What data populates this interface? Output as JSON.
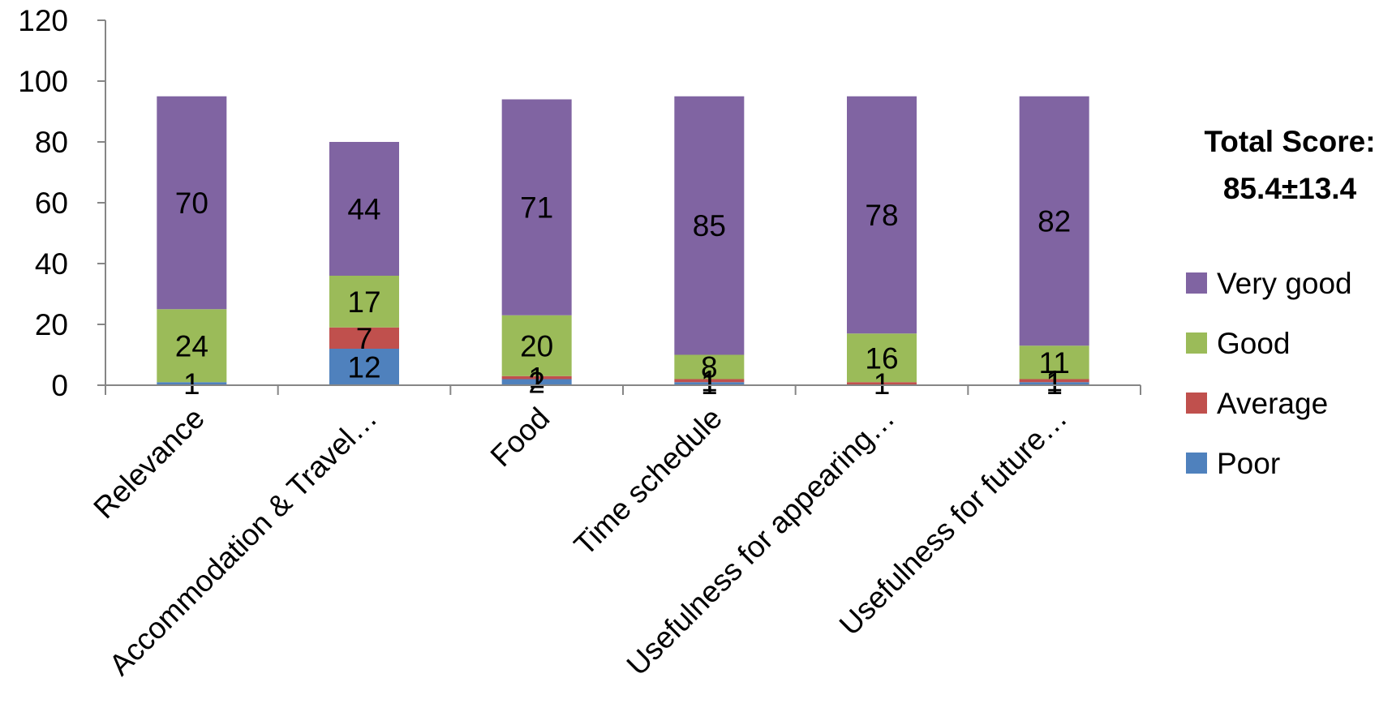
{
  "chart_data": {
    "type": "bar",
    "stacked": true,
    "categories": [
      "Relevance",
      "Accommodation & Travel…",
      "Food",
      "Time schedule",
      "Usefulness for appearing…",
      "Usefulness for future…"
    ],
    "series": [
      {
        "name": "Poor",
        "color": "#4F81BD",
        "values": [
          1,
          12,
          2,
          1,
          0,
          1
        ]
      },
      {
        "name": "Average",
        "color": "#C0504D",
        "values": [
          0,
          7,
          1,
          1,
          1,
          1
        ]
      },
      {
        "name": "Good",
        "color": "#9BBB59",
        "values": [
          24,
          17,
          20,
          8,
          16,
          11
        ]
      },
      {
        "name": "Very good",
        "color": "#8064A2",
        "values": [
          70,
          44,
          71,
          85,
          78,
          82
        ]
      }
    ],
    "data_labels": [
      [
        "1",
        "",
        "24",
        "70"
      ],
      [
        "12",
        "7",
        "17",
        "44"
      ],
      [
        "2",
        "1",
        "20",
        "71"
      ],
      [
        "1",
        "1",
        "8",
        "85"
      ],
      [
        "",
        "1",
        "16",
        "78"
      ],
      [
        "1",
        "1",
        "11",
        "82"
      ]
    ],
    "ylim": [
      0,
      120
    ],
    "yticks": [
      0,
      20,
      40,
      60,
      80,
      100,
      120
    ],
    "grid": false,
    "legend": {
      "position": "right",
      "order": [
        "Very good",
        "Good",
        "Average",
        "Poor"
      ]
    },
    "annotation": {
      "line1": "Total Score:",
      "line2": "85.4±13.4"
    }
  }
}
